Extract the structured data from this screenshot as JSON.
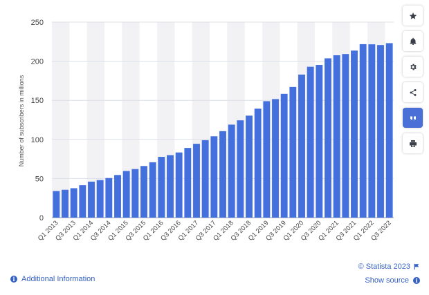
{
  "chart_data": {
    "type": "bar",
    "ylabel": "Number of subscribers in millions",
    "ylim": [
      0,
      250
    ],
    "yticks": [
      0,
      50,
      100,
      150,
      200,
      250
    ],
    "grid": true,
    "categories": [
      "Q1 2013",
      "Q2 2013",
      "Q3 2013",
      "Q4 2013",
      "Q1 2014",
      "Q2 2014",
      "Q3 2014",
      "Q4 2014",
      "Q1 2015",
      "Q2 2015",
      "Q3 2015",
      "Q4 2015",
      "Q1 2016",
      "Q2 2016",
      "Q3 2016",
      "Q4 2016",
      "Q1 2017",
      "Q2 2017",
      "Q3 2017",
      "Q4 2017",
      "Q1 2018",
      "Q2 2018",
      "Q3 2018",
      "Q4 2018",
      "Q1 2019",
      "Q2 2019",
      "Q3 2019",
      "Q4 2019",
      "Q1 2020",
      "Q2 2020",
      "Q3 2020",
      "Q4 2020",
      "Q1 2021",
      "Q2 2021",
      "Q3 2021",
      "Q4 2021",
      "Q1 2022",
      "Q2 2022",
      "Q3 2022"
    ],
    "tick_labels": [
      "Q1 2013",
      "Q3 2013",
      "Q1 2014",
      "Q3 2014",
      "Q1 2015",
      "Q3 2015",
      "Q1 2016",
      "Q3 2016",
      "Q1 2017",
      "Q3 2017",
      "Q1 2018",
      "Q3 2018",
      "Q1 2019",
      "Q3 2019",
      "Q1 2020",
      "Q3 2020",
      "Q1 2021",
      "Q3 2021",
      "Q1 2022",
      "Q3 2022"
    ],
    "values": [
      34,
      35.6,
      37.6,
      41.4,
      46,
      48,
      50.6,
      54.5,
      59.6,
      62.1,
      66,
      70.8,
      77.7,
      79.9,
      83.3,
      89.1,
      94.4,
      99,
      104,
      110.6,
      118.9,
      124.4,
      130.4,
      139.3,
      148.9,
      151.6,
      158.3,
      167.1,
      182.9,
      192.9,
      195.2,
      203.7,
      207.6,
      209.2,
      213.6,
      221.8,
      221.6,
      220.7,
      223.1
    ],
    "bar_color": "#4470dd",
    "band_color": "#f2f2f5"
  },
  "footer": {
    "copyright": "© Statista 2023",
    "additional_info": "Additional Information",
    "show_source": "Show source"
  },
  "toolbar": {
    "icons": [
      "star-icon",
      "bell-icon",
      "gear-icon",
      "share-icon",
      "quote-icon",
      "print-icon"
    ],
    "active_color": "#4a6fd6"
  }
}
